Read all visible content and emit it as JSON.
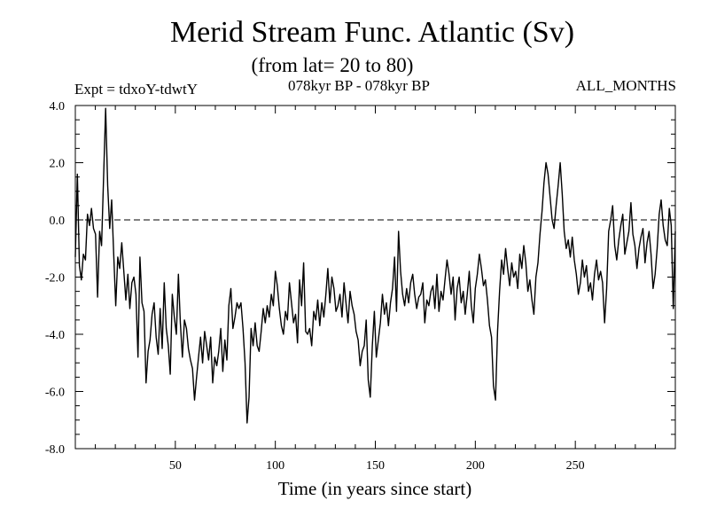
{
  "header": {
    "title": "Merid Stream Func. Atlantic (Sv)",
    "subtitle": "(from lat= 20 to 80)",
    "expt": "Expt = tdxoY-tdwtY",
    "period": "078kyr BP - 078kyr BP",
    "months": "ALL_MONTHS"
  },
  "chart_data": {
    "type": "line",
    "title": "Merid Stream Func. Atlantic (Sv)",
    "subtitle": "(from lat= 20 to 80)",
    "xlabel": "Time (in years since start)",
    "ylabel": "",
    "xlim": [
      0,
      300
    ],
    "ylim": [
      -8.0,
      4.0
    ],
    "xticks": [
      50,
      100,
      150,
      200,
      250
    ],
    "yticks": [
      -8.0,
      -6.0,
      -4.0,
      -2.0,
      0.0,
      2.0,
      4.0
    ],
    "ytick_labels": [
      "-8.0",
      "-6.0",
      "-4.0",
      "-2.0",
      "0.0",
      "2.0",
      "4.0"
    ],
    "reference_line": {
      "y": 0.0,
      "style": "dashed"
    },
    "grid": false,
    "series": [
      {
        "values": [
          -1.3,
          1.6,
          -1.6,
          -2.1,
          -1.2,
          -1.4,
          0.2,
          -0.2,
          0.4,
          -0.3,
          -0.5,
          -2.7,
          -0.4,
          -0.9,
          1.5,
          3.9,
          1.2,
          -0.3,
          0.7,
          -1.2,
          -3.0,
          -1.3,
          -1.7,
          -0.8,
          -1.8,
          -2.8,
          -1.9,
          -3.1,
          -2.2,
          -2.0,
          -2.6,
          -4.8,
          -1.3,
          -2.9,
          -3.2,
          -5.7,
          -4.6,
          -4.2,
          -3.3,
          -2.9,
          -4.1,
          -4.7,
          -3.1,
          -4.5,
          -2.2,
          -3.8,
          -4.4,
          -5.4,
          -2.6,
          -3.4,
          -4.0,
          -1.9,
          -3.6,
          -4.8,
          -3.5,
          -3.8,
          -4.5,
          -4.9,
          -5.2,
          -6.3,
          -5.5,
          -4.8,
          -4.1,
          -5.0,
          -3.9,
          -4.4,
          -4.9,
          -4.1,
          -5.7,
          -4.8,
          -5.1,
          -4.6,
          -3.8,
          -5.3,
          -4.2,
          -4.9,
          -3.0,
          -2.4,
          -3.8,
          -3.4,
          -2.9,
          -3.1,
          -2.9,
          -3.8,
          -5.0,
          -7.1,
          -6.2,
          -3.8,
          -4.4,
          -3.6,
          -4.4,
          -4.6,
          -3.9,
          -3.1,
          -3.6,
          -3.0,
          -3.4,
          -2.6,
          -3.0,
          -1.8,
          -2.3,
          -3.1,
          -3.7,
          -4.0,
          -3.2,
          -3.5,
          -2.2,
          -2.9,
          -3.6,
          -3.3,
          -4.3,
          -2.1,
          -3.0,
          -1.5,
          -3.9,
          -4.0,
          -3.8,
          -4.4,
          -3.2,
          -3.5,
          -2.8,
          -3.7,
          -2.9,
          -3.4,
          -2.6,
          -1.7,
          -2.9,
          -2.0,
          -2.4,
          -3.2,
          -3.0,
          -2.6,
          -3.4,
          -2.2,
          -2.9,
          -3.6,
          -2.5,
          -3.0,
          -3.3,
          -3.9,
          -4.2,
          -5.1,
          -4.6,
          -4.4,
          -3.5,
          -5.6,
          -6.2,
          -4.4,
          -3.2,
          -4.8,
          -4.2,
          -3.6,
          -2.6,
          -3.3,
          -2.9,
          -3.7,
          -2.9,
          -2.4,
          -1.3,
          -3.2,
          -0.4,
          -1.8,
          -2.6,
          -3.0,
          -2.4,
          -2.9,
          -2.2,
          -1.9,
          -2.6,
          -3.1,
          -2.7,
          -2.6,
          -2.2,
          -3.6,
          -2.8,
          -3.0,
          -2.5,
          -2.3,
          -3.1,
          -1.9,
          -3.2,
          -2.5,
          -2.8,
          -2.1,
          -1.4,
          -1.9,
          -2.6,
          -2.0,
          -3.5,
          -2.4,
          -2.0,
          -2.9,
          -2.5,
          -3.3,
          -2.6,
          -1.8,
          -3.0,
          -3.6,
          -2.4,
          -1.9,
          -1.2,
          -1.7,
          -2.3,
          -2.1,
          -2.8,
          -3.7,
          -4.1,
          -5.8,
          -6.3,
          -3.9,
          -2.5,
          -1.4,
          -1.9,
          -1.0,
          -1.7,
          -2.3,
          -1.5,
          -2.0,
          -1.8,
          -2.4,
          -1.2,
          -1.7,
          -0.9,
          -1.5,
          -2.5,
          -2.1,
          -2.8,
          -3.3,
          -2.0,
          -1.5,
          -0.5,
          0.3,
          1.3,
          2.0,
          1.6,
          0.8,
          0.0,
          -0.3,
          0.5,
          1.2,
          2.0,
          0.9,
          -0.4,
          -1.0,
          -0.7,
          -1.3,
          -0.6,
          -1.4,
          -1.9,
          -2.6,
          -2.2,
          -1.4,
          -2.0,
          -1.6,
          -2.5,
          -2.2,
          -2.8,
          -1.9,
          -1.4,
          -2.1,
          -1.8,
          -2.2,
          -3.6,
          -2.4,
          -0.4,
          0.0,
          0.5,
          -0.9,
          -1.4,
          -0.7,
          -0.2,
          0.2,
          -1.2,
          -0.8,
          -0.4,
          0.6,
          -0.5,
          -0.9,
          -1.7,
          -1.0,
          -0.6,
          -0.3,
          -1.5,
          -0.8,
          -0.4,
          -1.2,
          -2.4,
          -1.9,
          -1.0,
          0.2,
          0.7,
          -0.2,
          -0.7,
          -0.9,
          0.4,
          -0.2,
          -3.1,
          -0.4
        ]
      }
    ]
  }
}
